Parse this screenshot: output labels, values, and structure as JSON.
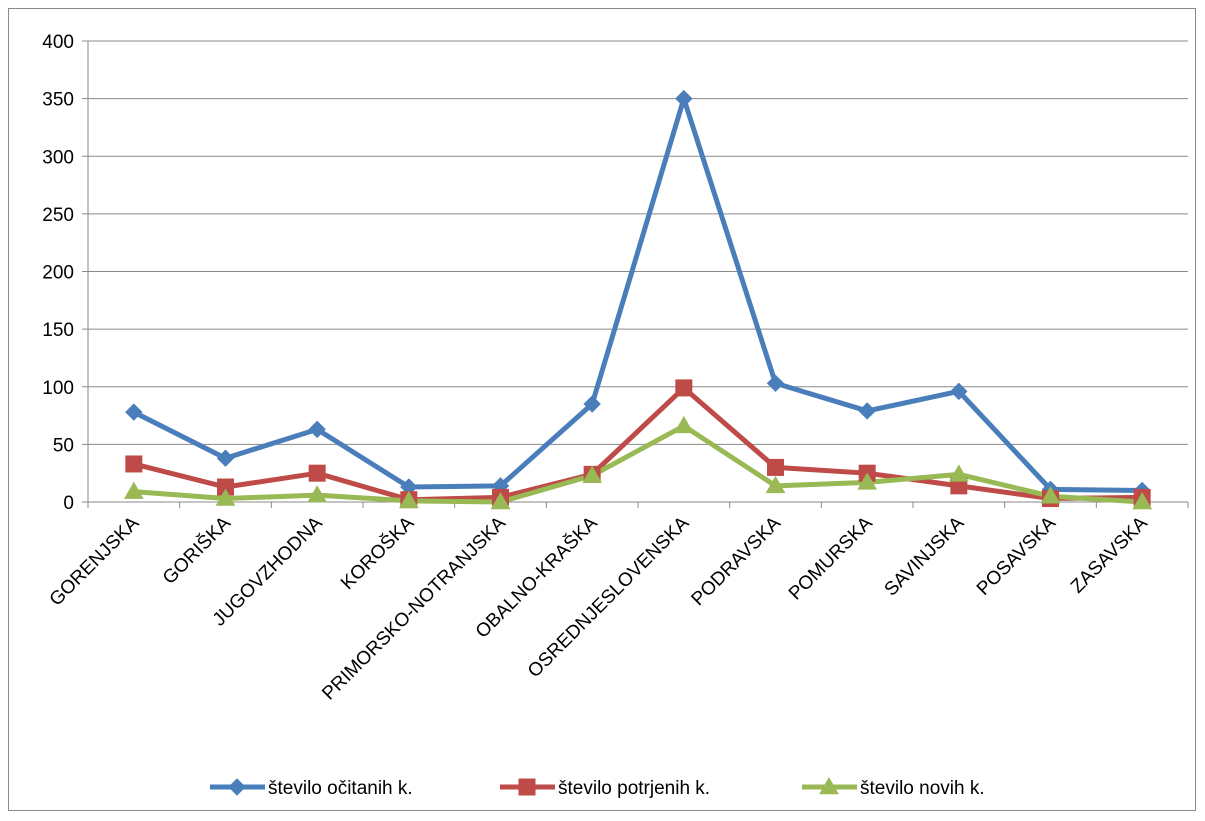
{
  "chart_data": {
    "type": "line",
    "categories": [
      "GORENJSKA",
      "GORIŠKA",
      "JUGOVZHODNA",
      "KOROŠKA",
      "PRIMORSKO-NOTRANJSKA",
      "OBALNO-KRAŠKA",
      "OSREDNJESLOVENSKA",
      "PODRAVSKA",
      "POMURSKA",
      "SAVINJSKA",
      "POSAVSKA",
      "ZASAVSKA"
    ],
    "series": [
      {
        "name": "število očitanih k.",
        "color": "#4a7ebb",
        "marker": "diamond",
        "values": [
          78,
          38,
          63,
          13,
          14,
          85,
          350,
          103,
          79,
          96,
          11,
          10
        ]
      },
      {
        "name": "število potrjenih k.",
        "color": "#be4b48",
        "marker": "square",
        "values": [
          33,
          13,
          25,
          2,
          4,
          24,
          99,
          30,
          25,
          14,
          3,
          4
        ]
      },
      {
        "name": "število novih k.",
        "color": "#98b954",
        "marker": "triangle",
        "values": [
          9,
          3,
          6,
          1,
          0,
          23,
          66,
          14,
          17,
          24,
          5,
          0
        ]
      }
    ],
    "ylim": [
      0,
      400
    ],
    "yticks": [
      "0",
      "50",
      "100",
      "150",
      "200",
      "250",
      "300",
      "350",
      "400"
    ],
    "grid": true,
    "legend_position": "bottom"
  }
}
